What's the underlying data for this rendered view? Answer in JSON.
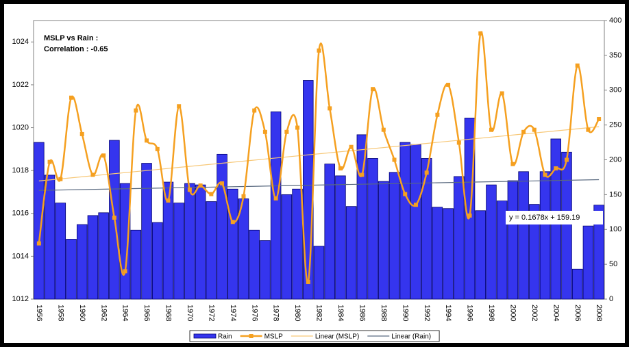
{
  "chart_data": {
    "type": "bar-line",
    "annotations": [
      "MSLP vs Rain :",
      "Correlation : -0.65"
    ],
    "categories": [
      "1956",
      null,
      "1958",
      null,
      "1960",
      null,
      "1962",
      null,
      "1964",
      null,
      "1966",
      null,
      "1968",
      null,
      "1970",
      null,
      "1972",
      null,
      "1974",
      null,
      "1976",
      null,
      "1978",
      null,
      "1980",
      null,
      "1982",
      null,
      "1984",
      null,
      "1986",
      null,
      "1988",
      null,
      "1990",
      null,
      "1992",
      null,
      "1994",
      null,
      "1996",
      null,
      "1998",
      null,
      "2000",
      null,
      "2002",
      null,
      "2004",
      null,
      "2006",
      null,
      "2008"
    ],
    "series": [
      {
        "name": "Rain",
        "type": "bar",
        "axis": "y2",
        "color": "#3535ee",
        "values": [
          225,
          178,
          138,
          86,
          107,
          120,
          124,
          228,
          166,
          99,
          195,
          110,
          168,
          138,
          166,
          164,
          140,
          208,
          158,
          144,
          99,
          84,
          269,
          150,
          158,
          314,
          76,
          194,
          177,
          133,
          236,
          202,
          169,
          182,
          225,
          222,
          202,
          132,
          130,
          176,
          260,
          127,
          164,
          141,
          170,
          183,
          136,
          183,
          230,
          211,
          43,
          105,
          135
        ],
        "trendline": {
          "name": "Linear (Rain)",
          "color": "#5a6a80",
          "equation": "y = 0.1678x + 159.19"
        }
      },
      {
        "name": "MSLP",
        "type": "line",
        "axis": "y",
        "color": "#f5a020",
        "values": [
          1014.6,
          1018.4,
          1017.6,
          1021.4,
          1019.7,
          1017.8,
          1018.7,
          1015.8,
          1013.3,
          1020.8,
          1019.4,
          1019.0,
          1016.6,
          1021.0,
          1017.1,
          1017.3,
          1016.9,
          1017.4,
          1015.6,
          1016.8,
          1020.8,
          1019.8,
          1016.7,
          1019.8,
          1020.0,
          1012.8,
          1023.6,
          1020.9,
          1018.1,
          1019.1,
          1017.8,
          1021.8,
          1019.9,
          1018.5,
          1016.9,
          1016.4,
          1017.9,
          1020.6,
          1022.0,
          1019.3,
          1015.9,
          1024.4,
          1019.9,
          1021.6,
          1018.3,
          1019.8,
          1019.9,
          1017.8,
          1018.1,
          1018.5,
          1022.9,
          1019.9,
          1020.4
        ],
        "trendline": {
          "name": "Linear (MSLP)",
          "color": "#f7c878"
        }
      }
    ],
    "ylim": [
      1012,
      1025
    ],
    "yticks": [
      1012,
      1014,
      1016,
      1018,
      1020,
      1022,
      1024
    ],
    "y2lim": [
      0,
      400
    ],
    "y2ticks": [
      0,
      50,
      100,
      150,
      200,
      250,
      300,
      350,
      400
    ],
    "legend": "bottom"
  }
}
